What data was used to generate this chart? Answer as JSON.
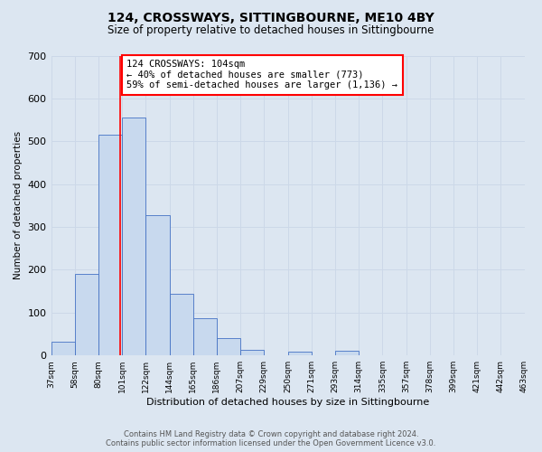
{
  "title": "124, CROSSWAYS, SITTINGBOURNE, ME10 4BY",
  "subtitle": "Size of property relative to detached houses in Sittingbourne",
  "xlabel": "Distribution of detached houses by size in Sittingbourne",
  "ylabel": "Number of detached properties",
  "footer_line1": "Contains HM Land Registry data © Crown copyright and database right 2024.",
  "footer_line2": "Contains public sector information licensed under the Open Government Licence v3.0.",
  "bin_labels": [
    "37sqm",
    "58sqm",
    "80sqm",
    "101sqm",
    "122sqm",
    "144sqm",
    "165sqm",
    "186sqm",
    "207sqm",
    "229sqm",
    "250sqm",
    "271sqm",
    "293sqm",
    "314sqm",
    "335sqm",
    "357sqm",
    "378sqm",
    "399sqm",
    "421sqm",
    "442sqm",
    "463sqm"
  ],
  "bar_values": [
    32,
    190,
    515,
    555,
    328,
    143,
    86,
    40,
    14,
    0,
    8,
    0,
    10,
    0,
    0,
    0,
    0,
    0,
    0,
    0
  ],
  "bar_color": "#c8d9ee",
  "bar_edge_color": "#4472c4",
  "ylim": [
    0,
    700
  ],
  "yticks": [
    0,
    100,
    200,
    300,
    400,
    500,
    600,
    700
  ],
  "annotation_line1": "124 CROSSWAYS: 104sqm",
  "annotation_line2": "← 40% of detached houses are smaller (773)",
  "annotation_line3": "59% of semi-detached houses are larger (1,136) →",
  "property_line_bin": 2.9,
  "grid_color": "#ccd8e8",
  "background_color": "#dce6f1",
  "title_fontsize": 10,
  "subtitle_fontsize": 8.5
}
